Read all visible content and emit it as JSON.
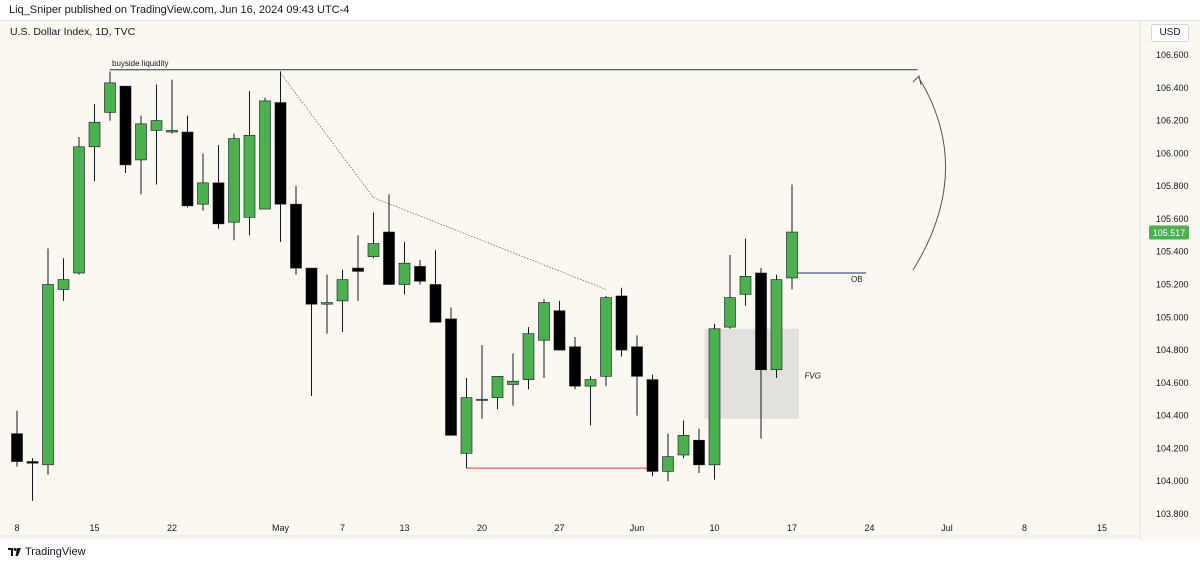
{
  "header": {
    "publisher": "Liq_Sniper published on TradingView.com, Jun 16, 2024 09:43 UTC-4",
    "symbol": "U.S. Dollar Index, 1D, TVC"
  },
  "price_scale": {
    "currency": "USD"
  },
  "footer": {
    "brand": "TradingView"
  },
  "colors": {
    "up": "#4caf50",
    "down": "#000000",
    "wick": "#131722",
    "last_price": "#4caf50"
  },
  "chart_data": {
    "type": "candlestick",
    "y_ticks": [
      "106.600",
      "106.400",
      "106.200",
      "106.000",
      "105.800",
      "105.600",
      "105.400",
      "105.200",
      "105.000",
      "104.800",
      "104.600",
      "104.400",
      "104.200",
      "104.000",
      "103.800"
    ],
    "ylim": [
      103.72,
      106.72
    ],
    "x_ticks": [
      {
        "label": "8",
        "i": 0
      },
      {
        "label": "15",
        "i": 5
      },
      {
        "label": "22",
        "i": 10
      },
      {
        "label": "May",
        "i": 17
      },
      {
        "label": "7",
        "i": 21
      },
      {
        "label": "13",
        "i": 25
      },
      {
        "label": "20",
        "i": 30
      },
      {
        "label": "27",
        "i": 35
      },
      {
        "label": "Jun",
        "i": 40
      },
      {
        "label": "10",
        "i": 45
      },
      {
        "label": "17",
        "i": 50
      },
      {
        "label": "24",
        "i": 55
      },
      {
        "label": "Jul",
        "i": 60
      },
      {
        "label": "8",
        "i": 65
      },
      {
        "label": "15",
        "i": 70
      }
    ],
    "last_price": {
      "label": "105.517",
      "value": 105.517
    },
    "candles": [
      {
        "i": 0,
        "o": 104.29,
        "h": 104.43,
        "l": 104.09,
        "c": 104.12
      },
      {
        "i": 1,
        "o": 104.12,
        "h": 104.14,
        "l": 103.88,
        "c": 104.11
      },
      {
        "i": 2,
        "o": 104.1,
        "h": 105.42,
        "l": 104.04,
        "c": 105.2
      },
      {
        "i": 3,
        "o": 105.17,
        "h": 105.36,
        "l": 105.1,
        "c": 105.23
      },
      {
        "i": 4,
        "o": 105.27,
        "h": 106.1,
        "l": 105.26,
        "c": 106.04
      },
      {
        "i": 5,
        "o": 106.04,
        "h": 106.3,
        "l": 105.83,
        "c": 106.19
      },
      {
        "i": 6,
        "o": 106.25,
        "h": 106.5,
        "l": 106.2,
        "c": 106.43
      },
      {
        "i": 7,
        "o": 106.41,
        "h": 106.41,
        "l": 105.88,
        "c": 105.93
      },
      {
        "i": 8,
        "o": 105.96,
        "h": 106.23,
        "l": 105.75,
        "c": 106.18
      },
      {
        "i": 9,
        "o": 106.14,
        "h": 106.42,
        "l": 105.81,
        "c": 106.2
      },
      {
        "i": 10,
        "o": 106.13,
        "h": 106.45,
        "l": 106.12,
        "c": 106.14
      },
      {
        "i": 11,
        "o": 106.13,
        "h": 106.23,
        "l": 105.67,
        "c": 105.68
      },
      {
        "i": 12,
        "o": 105.69,
        "h": 106.0,
        "l": 105.65,
        "c": 105.82
      },
      {
        "i": 13,
        "o": 105.82,
        "h": 106.05,
        "l": 105.54,
        "c": 105.57
      },
      {
        "i": 14,
        "o": 105.58,
        "h": 106.12,
        "l": 105.47,
        "c": 106.09
      },
      {
        "i": 15,
        "o": 105.61,
        "h": 106.38,
        "l": 105.5,
        "c": 106.11
      },
      {
        "i": 16,
        "o": 105.66,
        "h": 106.34,
        "l": 105.66,
        "c": 106.32
      },
      {
        "i": 17,
        "o": 106.31,
        "h": 106.5,
        "l": 105.46,
        "c": 105.69
      },
      {
        "i": 18,
        "o": 105.69,
        "h": 105.8,
        "l": 105.26,
        "c": 105.3
      },
      {
        "i": 19,
        "o": 105.3,
        "h": 105.3,
        "l": 104.52,
        "c": 105.08
      },
      {
        "i": 20,
        "o": 105.08,
        "h": 105.26,
        "l": 104.9,
        "c": 105.09
      },
      {
        "i": 21,
        "o": 105.1,
        "h": 105.29,
        "l": 104.91,
        "c": 105.23
      },
      {
        "i": 22,
        "o": 105.3,
        "h": 105.5,
        "l": 105.1,
        "c": 105.28
      },
      {
        "i": 23,
        "o": 105.37,
        "h": 105.64,
        "l": 105.36,
        "c": 105.45
      },
      {
        "i": 24,
        "o": 105.52,
        "h": 105.75,
        "l": 105.2,
        "c": 105.2
      },
      {
        "i": 25,
        "o": 105.2,
        "h": 105.46,
        "l": 105.14,
        "c": 105.33
      },
      {
        "i": 26,
        "o": 105.31,
        "h": 105.35,
        "l": 105.2,
        "c": 105.22
      },
      {
        "i": 27,
        "o": 105.2,
        "h": 105.41,
        "l": 104.97,
        "c": 104.97
      },
      {
        "i": 28,
        "o": 104.99,
        "h": 105.06,
        "l": 104.28,
        "c": 104.28
      },
      {
        "i": 29,
        "o": 104.17,
        "h": 104.63,
        "l": 104.08,
        "c": 104.51
      },
      {
        "i": 30,
        "o": 104.5,
        "h": 104.83,
        "l": 104.38,
        "c": 104.5
      },
      {
        "i": 31,
        "o": 104.51,
        "h": 104.63,
        "l": 104.44,
        "c": 104.64
      },
      {
        "i": 32,
        "o": 104.59,
        "h": 104.78,
        "l": 104.46,
        "c": 104.61
      },
      {
        "i": 33,
        "o": 104.62,
        "h": 104.94,
        "l": 104.56,
        "c": 104.9
      },
      {
        "i": 34,
        "o": 104.86,
        "h": 105.11,
        "l": 104.63,
        "c": 105.09
      },
      {
        "i": 35,
        "o": 105.04,
        "h": 105.1,
        "l": 104.8,
        "c": 104.8
      },
      {
        "i": 36,
        "o": 104.82,
        "h": 104.88,
        "l": 104.56,
        "c": 104.58
      },
      {
        "i": 37,
        "o": 104.58,
        "h": 104.64,
        "l": 104.34,
        "c": 104.62
      },
      {
        "i": 38,
        "o": 104.64,
        "h": 105.13,
        "l": 104.58,
        "c": 105.12
      },
      {
        "i": 39,
        "o": 105.13,
        "h": 105.18,
        "l": 104.76,
        "c": 104.8
      },
      {
        "i": 40,
        "o": 104.82,
        "h": 104.89,
        "l": 104.4,
        "c": 104.64
      },
      {
        "i": 41,
        "o": 104.62,
        "h": 104.65,
        "l": 104.03,
        "c": 104.06
      },
      {
        "i": 42,
        "o": 104.06,
        "h": 104.29,
        "l": 104.0,
        "c": 104.15
      },
      {
        "i": 43,
        "o": 104.16,
        "h": 104.37,
        "l": 104.14,
        "c": 104.28
      },
      {
        "i": 44,
        "o": 104.25,
        "h": 104.32,
        "l": 104.05,
        "c": 104.1
      },
      {
        "i": 45,
        "o": 104.1,
        "h": 104.96,
        "l": 104.01,
        "c": 104.93
      },
      {
        "i": 46,
        "o": 104.94,
        "h": 105.38,
        "l": 104.93,
        "c": 105.12
      },
      {
        "i": 47,
        "o": 105.14,
        "h": 105.48,
        "l": 105.07,
        "c": 105.25
      },
      {
        "i": 48,
        "o": 105.27,
        "h": 105.3,
        "l": 104.26,
        "c": 104.68
      },
      {
        "i": 49,
        "o": 104.68,
        "h": 105.26,
        "l": 104.63,
        "c": 105.23
      },
      {
        "i": 50,
        "o": 105.24,
        "h": 105.81,
        "l": 105.17,
        "c": 105.52
      }
    ],
    "annotations": {
      "buyside_liquidity": {
        "label": "buyside liquidity",
        "value": 106.51,
        "from_i": 6,
        "to_i": 59
      },
      "ob": {
        "label": "OB",
        "value": 105.27,
        "from_i": 50,
        "to_i": 54
      },
      "fvg": {
        "label": "FVG",
        "top": 104.93,
        "bottom": 104.38,
        "from_i": 45,
        "to_i": 50
      },
      "low_line": {
        "value": 104.08,
        "from_i": 29,
        "to_i": 41
      },
      "trendline": [
        {
          "i": 17,
          "v": 106.49
        },
        {
          "i": 23,
          "v": 105.73
        },
        {
          "i": 38,
          "v": 105.17
        }
      ]
    }
  }
}
